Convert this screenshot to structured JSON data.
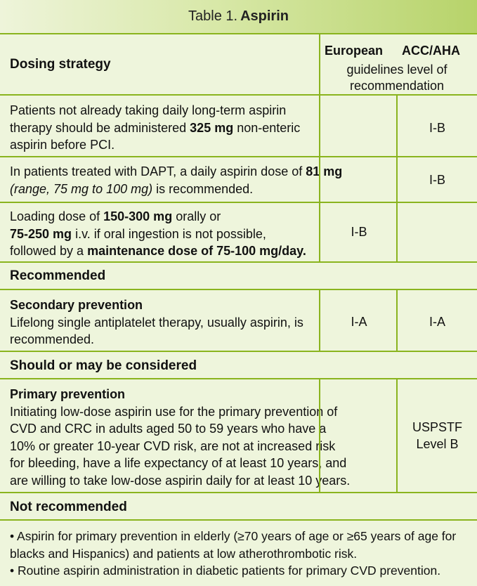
{
  "title": {
    "prefix": "Table 1.",
    "name": "Aspirin"
  },
  "header": {
    "left": "Dosing strategy",
    "col_eu": "European",
    "col_acc": "ACC/AHA",
    "sub_line1": "guidelines level of",
    "sub_line2": "recommendation"
  },
  "rows": [
    {
      "lines": [
        [
          "Patients not already taking daily long-term aspirin"
        ],
        [
          "therapy should be administered ",
          "325 mg",
          " non-enteric"
        ],
        [
          "aspirin before PCI."
        ]
      ],
      "eu": "",
      "acc": "I-B"
    },
    {
      "line1a": "In patients treated with DAPT, a daily aspirin dose of ",
      "line1b": "81 mg",
      "line2a": "(range, 75 mg to 100 mg)",
      "line2b": " is recommended.",
      "eu": "",
      "acc": "I-B"
    },
    {
      "l1a": "Loading dose of ",
      "l1b": "150-300 mg",
      "l1c": " orally or",
      "l2a": "75-250 mg",
      "l2b": " i.v. if oral ingestion is not possible,",
      "l3a": "followed by a ",
      "l3b": "maintenance dose of 75-100 mg/day.",
      "eu": "I-B",
      "acc": ""
    }
  ],
  "sections": {
    "recommended": "Recommended",
    "should": "Should or may be considered",
    "not": "Not recommended"
  },
  "secondary": {
    "heading": "Secondary prevention",
    "line1": "Lifelong single antiplatelet therapy, usually aspirin, is",
    "line2": "recommended.",
    "eu": "I-A",
    "acc": "I-A"
  },
  "primary": {
    "heading": "Primary prevention",
    "lines": [
      "Initiating low-dose aspirin use for the primary prevention of",
      "CVD and CRC in adults aged 50 to 59 years who have a",
      "10% or greater 10-year CVD risk, are not at increased risk",
      "for bleeding, have a life expectancy of at least 10 years, and",
      "are willing to take low-dose aspirin daily for at least 10 years."
    ],
    "acc_line1": "USPSTF",
    "acc_line2": "Level B"
  },
  "not_recommended": {
    "lines": [
      "• Aspirin for primary prevention in elderly (≥70 years of age or ≥65 years of age for",
      "blacks and Hispanics) and patients at low atherothrombotic risk.",
      "• Routine aspirin administration in diabetic patients for primary CVD prevention."
    ]
  }
}
